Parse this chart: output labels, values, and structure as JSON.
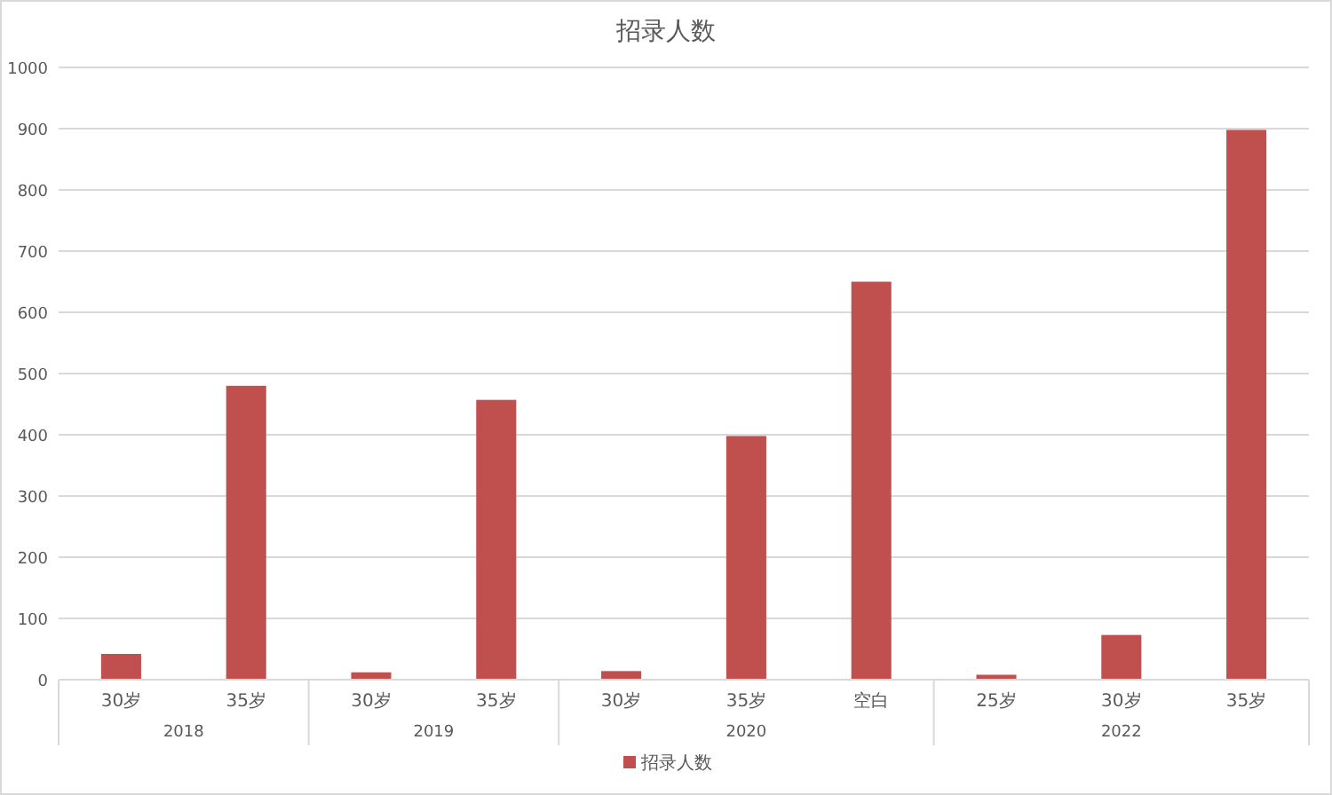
{
  "chart_data": {
    "type": "bar",
    "title": "招录人数",
    "categories": [
      "30岁",
      "35岁",
      "30岁",
      "35岁",
      "30岁",
      "35岁",
      "空白",
      "25岁",
      "30岁",
      "35岁"
    ],
    "series": [
      {
        "name": "招录人数",
        "color": "#c0504d",
        "values": [
          42,
          480,
          12,
          457,
          14,
          398,
          650,
          8,
          73,
          898
        ]
      }
    ],
    "ylim": [
      0,
      1000
    ],
    "yticks": [
      0,
      100,
      200,
      300,
      400,
      500,
      600,
      700,
      800,
      900,
      1000
    ],
    "grid": "y",
    "legend": "bottom",
    "annotations": [
      "2018",
      "2019",
      "2020",
      "2022"
    ]
  }
}
